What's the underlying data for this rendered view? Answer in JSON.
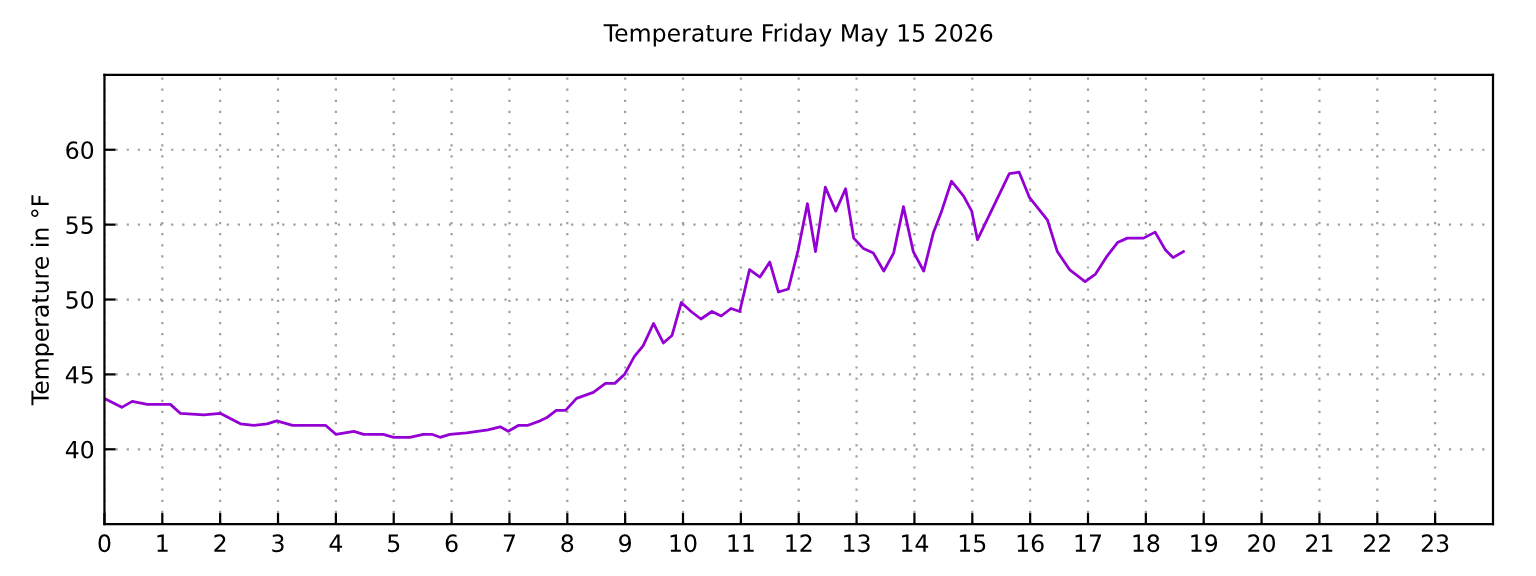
{
  "chart_data": {
    "type": "line",
    "title": "Temperature Friday May 15 2026",
    "ylabel": "Temperature in °F",
    "xlim": [
      0,
      24
    ],
    "xticks": [
      0,
      1,
      2,
      3,
      4,
      5,
      6,
      7,
      8,
      9,
      10,
      11,
      12,
      13,
      14,
      15,
      16,
      17,
      18,
      19,
      20,
      21,
      22,
      23
    ],
    "ylim": [
      35,
      65
    ],
    "yticks": [
      40,
      45,
      50,
      55,
      60
    ],
    "grid": true,
    "marker": "none",
    "line_style": "solid",
    "series": [
      {
        "color": "#9400d3",
        "x": [
          0,
          0.3,
          0.48,
          0.74,
          1.14,
          1.31,
          1.72,
          2.0,
          2.35,
          2.58,
          2.81,
          2.98,
          3.25,
          3.82,
          4.0,
          4.31,
          4.48,
          4.82,
          5.0,
          5.28,
          5.51,
          5.66,
          5.8,
          5.97,
          6.26,
          6.63,
          6.84,
          6.98,
          7.16,
          7.32,
          7.53,
          7.64,
          7.81,
          7.97,
          8.16,
          8.45,
          8.66,
          8.82,
          8.99,
          9.16,
          9.31,
          9.49,
          9.66,
          9.81,
          9.97,
          10.14,
          10.31,
          10.5,
          10.66,
          10.83,
          10.98,
          11.15,
          11.33,
          11.5,
          11.65,
          11.82,
          11.99,
          12.15,
          12.29,
          12.46,
          12.64,
          12.81,
          12.95,
          13.12,
          13.29,
          13.47,
          13.64,
          13.81,
          13.98,
          14.16,
          14.33,
          14.47,
          14.64,
          14.85,
          14.99,
          15.09,
          15.64,
          15.81,
          15.99,
          16.3,
          16.47,
          16.68,
          16.95,
          17.13,
          17.33,
          17.51,
          17.68,
          17.96,
          18.16,
          18.34,
          18.47,
          18.65
        ],
        "values": [
          43.4,
          42.8,
          43.2,
          43.0,
          43.0,
          42.4,
          42.3,
          42.4,
          41.7,
          41.6,
          41.7,
          41.9,
          41.6,
          41.6,
          41.0,
          41.2,
          41.0,
          41.0,
          40.8,
          40.8,
          41.0,
          41.0,
          40.8,
          41.0,
          41.1,
          41.3,
          41.5,
          41.2,
          41.6,
          41.6,
          41.9,
          42.1,
          42.6,
          42.6,
          43.4,
          43.8,
          44.4,
          44.4,
          45.0,
          46.2,
          46.9,
          48.4,
          47.1,
          47.6,
          49.8,
          49.2,
          48.7,
          49.2,
          48.9,
          49.4,
          49.2,
          52.0,
          51.5,
          52.5,
          50.5,
          50.7,
          53.3,
          56.4,
          53.2,
          57.5,
          55.9,
          57.4,
          54.1,
          53.4,
          53.1,
          51.9,
          53.1,
          56.2,
          53.2,
          51.9,
          54.5,
          55.9,
          57.9,
          56.9,
          55.9,
          54.0,
          58.4,
          58.5,
          56.8,
          55.3,
          53.2,
          52.0,
          51.2,
          51.7,
          52.9,
          53.8,
          54.1,
          54.1,
          54.5,
          53.3,
          52.8,
          53.2
        ]
      }
    ]
  }
}
